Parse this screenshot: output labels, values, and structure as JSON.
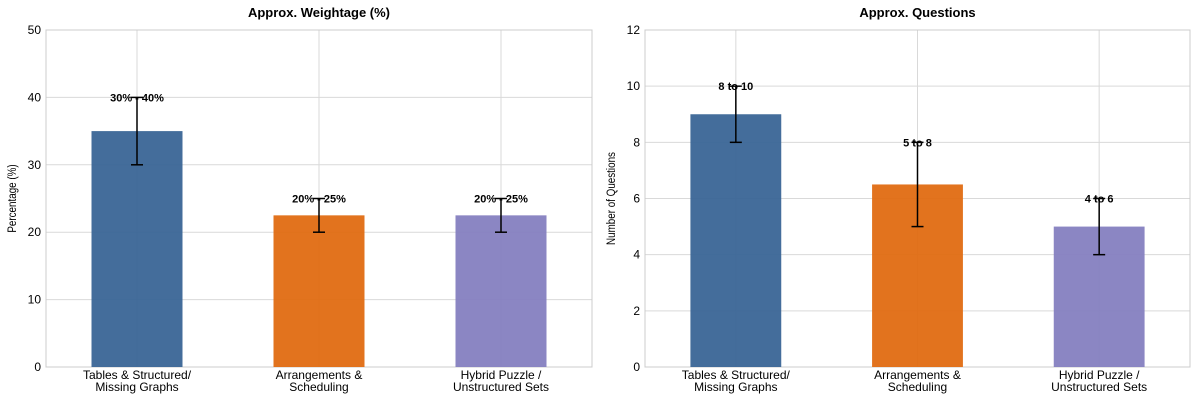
{
  "chart_data": [
    {
      "type": "bar",
      "title": "Approx. Weightage (%)",
      "xlabel": "",
      "ylabel": "Percentage (%)",
      "ylim": [
        0,
        50
      ],
      "yticks": [
        0,
        10,
        20,
        30,
        40,
        50
      ],
      "grid": true,
      "categories": [
        [
          "Tables & Structured/",
          "Missing Graphs"
        ],
        [
          "Arrangements &",
          "Scheduling"
        ],
        [
          "Hybrid Puzzle /",
          "Unstructured Sets"
        ]
      ],
      "values": [
        35,
        22.5,
        22.5
      ],
      "error_low": [
        30,
        20,
        20
      ],
      "error_high": [
        40,
        25,
        25
      ],
      "data_labels": [
        "30% - 40%",
        "20% - 25%",
        "20% - 25%"
      ],
      "colors": [
        "#3a6596",
        "#e06b12",
        "#8580c0"
      ]
    },
    {
      "type": "bar",
      "title": "Approx. Questions",
      "xlabel": "",
      "ylabel": "Number of Questions",
      "ylim": [
        0,
        12
      ],
      "yticks": [
        0,
        2,
        4,
        6,
        8,
        10,
        12
      ],
      "grid": true,
      "categories": [
        [
          "Tables & Structured/",
          "Missing Graphs"
        ],
        [
          "Arrangements &",
          "Scheduling"
        ],
        [
          "Hybrid Puzzle /",
          "Unstructured Sets"
        ]
      ],
      "values": [
        9,
        6.5,
        5
      ],
      "error_low": [
        8,
        5,
        4
      ],
      "error_high": [
        10,
        8,
        6
      ],
      "data_labels": [
        "8 to 10",
        "5 to 8",
        "4 to 6"
      ],
      "colors": [
        "#3a6596",
        "#e06b12",
        "#8580c0"
      ]
    }
  ]
}
